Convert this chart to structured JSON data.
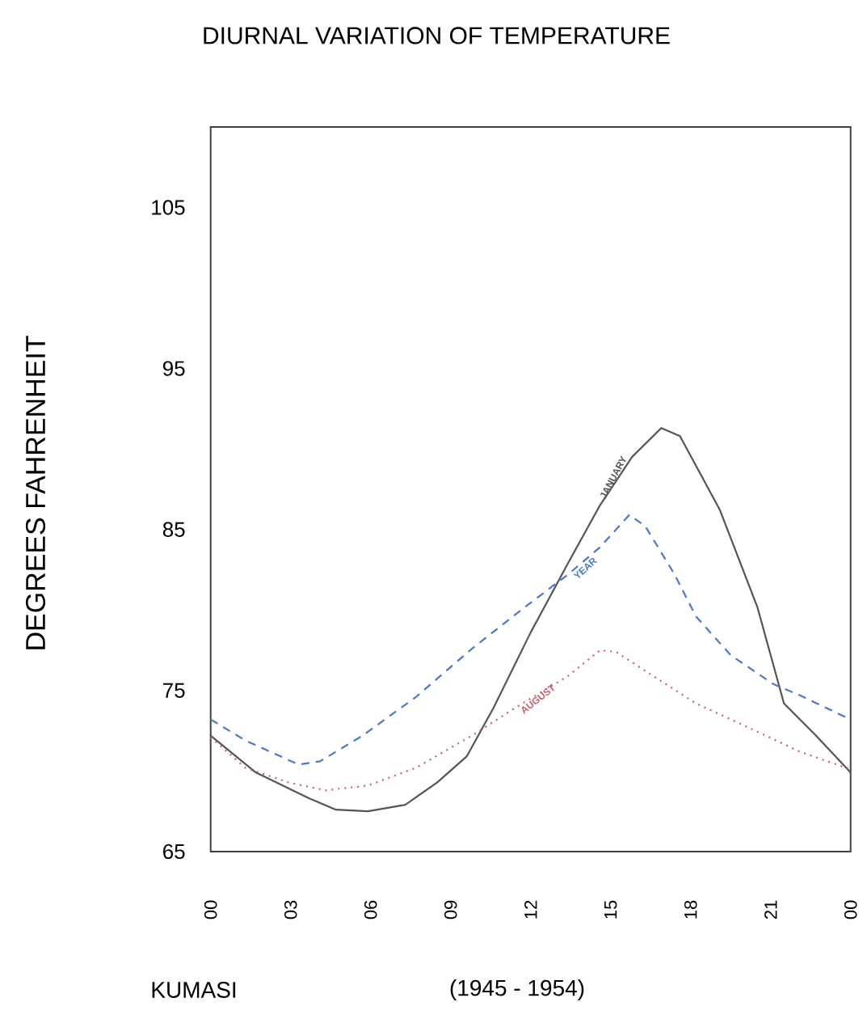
{
  "chart_data": {
    "type": "line",
    "title": "DIURNAL VARIATION OF TEMPERATURE",
    "ylabel": "DEGREES   FAHRENHEIT",
    "annotations": [
      "KUMASI",
      "(1945 -  1954)"
    ],
    "xlim": [
      0,
      24
    ],
    "ylim": [
      65,
      110
    ],
    "xticks": [
      {
        "value": 0,
        "label": "00"
      },
      {
        "value": 3,
        "label": "03"
      },
      {
        "value": 6,
        "label": "06"
      },
      {
        "value": 9,
        "label": "09"
      },
      {
        "value": 12,
        "label": "12"
      },
      {
        "value": 15,
        "label": "15"
      },
      {
        "value": 18,
        "label": "18"
      },
      {
        "value": 21,
        "label": "21"
      },
      {
        "value": 24,
        "label": "00"
      }
    ],
    "yticks": [
      65,
      75,
      85,
      95,
      105
    ],
    "legend": false,
    "grid": false,
    "marker": "none",
    "series": [
      {
        "name": "JANUARY",
        "color": "#555555",
        "line_style": "solid",
        "x": [
          0,
          1.7,
          3.7,
          4.7,
          5.9,
          7.3,
          8.5,
          9.6,
          10.6,
          12.0,
          13.4,
          14.6,
          15.8,
          16.9,
          17.6,
          19.1,
          20.5,
          21.5,
          22.7,
          24
        ],
        "values": [
          72.2,
          69.9,
          68.3,
          67.6,
          67.5,
          67.9,
          69.3,
          70.9,
          73.9,
          78.6,
          82.9,
          86.5,
          89.5,
          91.3,
          90.8,
          86.2,
          80.2,
          74.2,
          72.2,
          69.9
        ]
      },
      {
        "name": "YEAR",
        "color": "#4a78c8",
        "line_style": "dashed",
        "x": [
          0,
          1.3,
          3.3,
          4.1,
          5.7,
          7.7,
          9.8,
          11.8,
          13.4,
          14.6,
          15.7,
          16.3,
          17.4,
          18.2,
          19.5,
          21.1,
          22.1,
          24
        ],
        "values": [
          73.2,
          71.9,
          70.4,
          70.6,
          72.2,
          74.6,
          77.6,
          80.2,
          82.2,
          83.9,
          85.9,
          85.2,
          82.2,
          79.6,
          77.2,
          75.4,
          74.7,
          73.2
        ]
      },
      {
        "name": "AUGUST",
        "color": "#d05a6a",
        "line_style": "dotted",
        "x": [
          0,
          1.3,
          2.9,
          4.3,
          5.9,
          7.7,
          9.8,
          11.4,
          13.4,
          14.6,
          15.2,
          16.6,
          18.2,
          20.3,
          22.1,
          24
        ],
        "values": [
          72.1,
          70.2,
          69.3,
          68.8,
          69.1,
          70.2,
          72.2,
          73.9,
          75.9,
          77.5,
          77.4,
          75.9,
          74.2,
          72.6,
          71.2,
          70.1
        ]
      }
    ]
  }
}
